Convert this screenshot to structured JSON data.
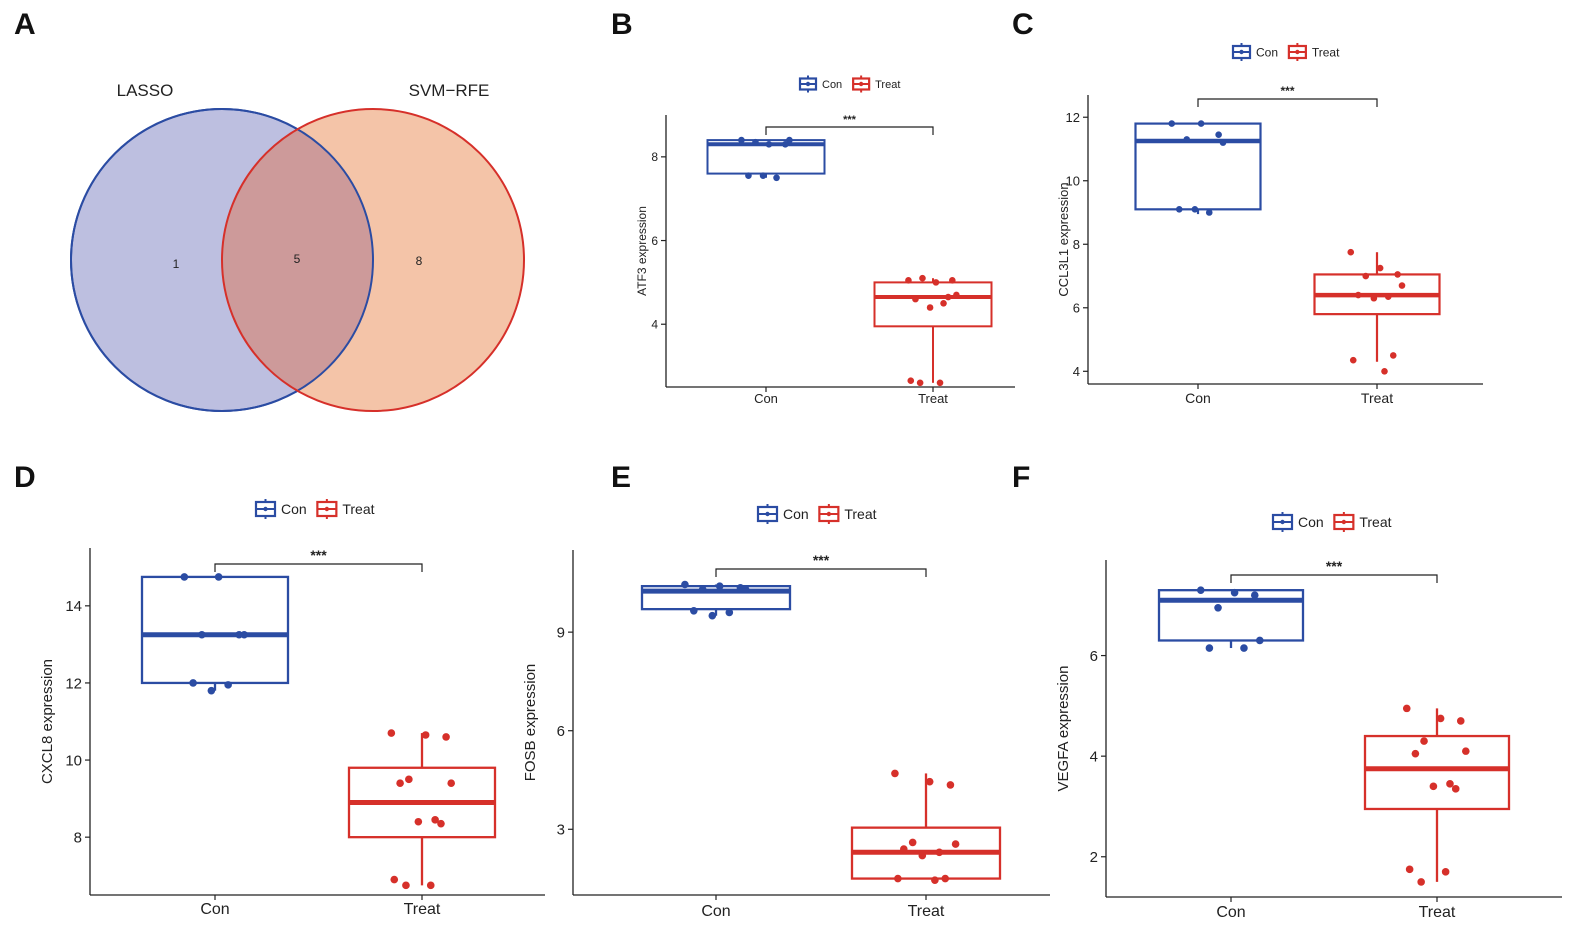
{
  "colors": {
    "con": "#2B4CA3",
    "treat": "#D6302A",
    "lasso_fill": "#BDBFE0",
    "svm_fill": "#F4C4A8",
    "overlap_fill": "#CD9A9A"
  },
  "venn": {
    "letter": "A",
    "sets": [
      "LASSO",
      "SVM−RFE"
    ],
    "counts": {
      "left_only": "1",
      "overlap": "5",
      "right_only": "8"
    }
  },
  "chart_data": [
    {
      "letter": "B",
      "type": "box",
      "ylabel": "ATF3 expression",
      "categories": [
        "Con",
        "Treat"
      ],
      "yticks": [
        4,
        6,
        8
      ],
      "ylim": [
        2.5,
        9.0
      ],
      "legend": [
        "Con",
        "Treat"
      ],
      "significance": "***",
      "boxes": [
        {
          "name": "Con",
          "q1": 7.6,
          "median": 8.3,
          "q3": 8.4,
          "min": 7.5,
          "max": 8.4,
          "points": [
            8.4,
            8.3,
            8.3,
            8.35,
            8.4,
            7.55,
            7.5,
            7.55
          ]
        },
        {
          "name": "Treat",
          "q1": 3.95,
          "median": 4.65,
          "q3": 5.0,
          "min": 2.6,
          "max": 5.1,
          "points": [
            5.05,
            5.0,
            5.05,
            5.1,
            4.7,
            4.6,
            4.5,
            4.4,
            4.65,
            2.65,
            2.6,
            2.6
          ]
        }
      ]
    },
    {
      "letter": "C",
      "type": "box",
      "ylabel": "CCL3L1 expression",
      "categories": [
        "Con",
        "Treat"
      ],
      "yticks": [
        4,
        6,
        8,
        10,
        12
      ],
      "ylim": [
        3.6,
        12.7
      ],
      "legend": [
        "Con",
        "Treat"
      ],
      "significance": "***",
      "boxes": [
        {
          "name": "Con",
          "q1": 9.1,
          "median": 11.25,
          "q3": 11.8,
          "min": 8.95,
          "max": 11.8,
          "points": [
            11.8,
            11.8,
            11.45,
            11.3,
            11.2,
            9.1,
            9.0,
            9.1
          ]
        },
        {
          "name": "Treat",
          "q1": 5.8,
          "median": 6.4,
          "q3": 7.05,
          "min": 4.3,
          "max": 7.75,
          "points": [
            7.75,
            7.25,
            7.05,
            7.0,
            6.7,
            6.4,
            6.35,
            6.3,
            4.5,
            4.35,
            4.0
          ]
        }
      ]
    },
    {
      "letter": "D",
      "type": "box",
      "ylabel": "CXCL8 expression",
      "categories": [
        "Con",
        "Treat"
      ],
      "yticks": [
        8,
        10,
        12,
        14
      ],
      "ylim": [
        6.5,
        15.5
      ],
      "legend": [
        "Con",
        "Treat"
      ],
      "significance": "***",
      "boxes": [
        {
          "name": "Con",
          "q1": 12.0,
          "median": 13.25,
          "q3": 14.75,
          "min": 11.8,
          "max": 14.75,
          "points": [
            14.75,
            14.75,
            13.25,
            13.25,
            13.25,
            12.0,
            11.95,
            11.8
          ]
        },
        {
          "name": "Treat",
          "q1": 8.0,
          "median": 8.9,
          "q3": 9.8,
          "min": 6.75,
          "max": 10.7,
          "points": [
            10.7,
            10.65,
            10.6,
            9.5,
            9.4,
            9.4,
            8.45,
            8.4,
            8.35,
            6.9,
            6.75,
            6.75
          ]
        }
      ]
    },
    {
      "letter": "E",
      "type": "box",
      "ylabel": "FOSB expression",
      "categories": [
        "Con",
        "Treat"
      ],
      "yticks": [
        3,
        6,
        9
      ],
      "ylim": [
        1.0,
        11.5
      ],
      "legend": [
        "Con",
        "Treat"
      ],
      "significance": "***",
      "boxes": [
        {
          "name": "Con",
          "q1": 9.7,
          "median": 10.25,
          "q3": 10.4,
          "min": 9.5,
          "max": 10.45,
          "points": [
            10.45,
            10.4,
            10.35,
            10.3,
            10.3,
            9.65,
            9.6,
            9.5
          ]
        },
        {
          "name": "Treat",
          "q1": 1.5,
          "median": 2.3,
          "q3": 3.05,
          "min": 1.5,
          "max": 4.7,
          "points": [
            4.7,
            4.45,
            4.35,
            2.6,
            2.55,
            2.4,
            2.3,
            2.2,
            1.5,
            1.5,
            1.45
          ]
        }
      ]
    },
    {
      "letter": "F",
      "type": "box",
      "ylabel": "VEGFA expression",
      "categories": [
        "Con",
        "Treat"
      ],
      "yticks": [
        2,
        4,
        6
      ],
      "ylim": [
        1.2,
        7.9
      ],
      "legend": [
        "Con",
        "Treat"
      ],
      "significance": "***",
      "boxes": [
        {
          "name": "Con",
          "q1": 6.3,
          "median": 7.1,
          "q3": 7.3,
          "min": 6.15,
          "max": 7.3,
          "points": [
            7.3,
            7.25,
            7.2,
            6.95,
            6.3,
            6.15,
            6.15
          ]
        },
        {
          "name": "Treat",
          "q1": 2.95,
          "median": 3.75,
          "q3": 4.4,
          "min": 1.5,
          "max": 4.95,
          "points": [
            4.95,
            4.75,
            4.7,
            4.3,
            4.1,
            4.05,
            3.45,
            3.4,
            3.35,
            1.75,
            1.7,
            1.5
          ]
        }
      ]
    }
  ]
}
